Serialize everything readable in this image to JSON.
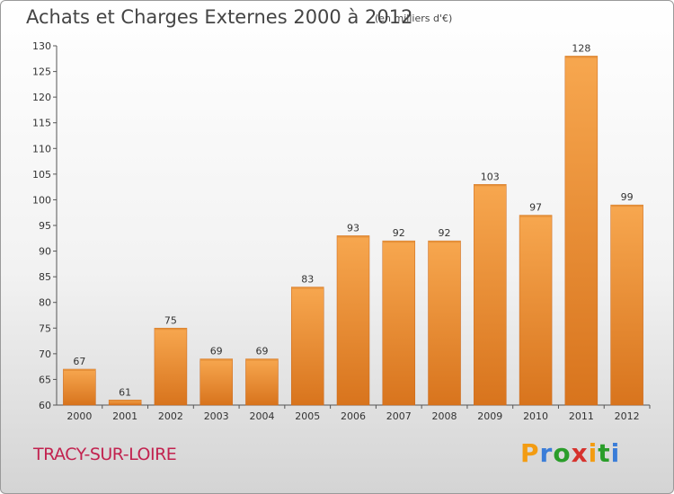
{
  "title": "Achats et Charges Externes 2000 à 2012",
  "unit": "(en milliers d'€)",
  "commune": "TRACY-SUR-LOIRE",
  "logo": {
    "text": "Proxiti",
    "letters": [
      "P",
      "r",
      "o",
      "x",
      "i",
      "t",
      "i"
    ],
    "colors": [
      "#f39c12",
      "#3b7dd8",
      "#2a9d2a",
      "#d6322d",
      "#f39c12",
      "#2a9d2a",
      "#3b7dd8"
    ]
  },
  "colors": {
    "bar_light": "#f7a74f",
    "bar_dark": "#d8741d",
    "commune": "#c2224f"
  },
  "chart_data": {
    "type": "bar",
    "title": "Achats et Charges Externes 2000 à 2012",
    "subtitle": "(en milliers d'€)",
    "categories": [
      "2000",
      "2001",
      "2002",
      "2003",
      "2004",
      "2005",
      "2006",
      "2007",
      "2008",
      "2009",
      "2010",
      "2011",
      "2012"
    ],
    "values": [
      67,
      61,
      75,
      69,
      69,
      83,
      93,
      92,
      92,
      103,
      97,
      128,
      99
    ],
    "ylim": [
      60,
      130
    ],
    "yticks": [
      60,
      65,
      70,
      75,
      80,
      85,
      90,
      95,
      100,
      105,
      110,
      115,
      120,
      125,
      130
    ],
    "grid": false,
    "legend": "none"
  }
}
